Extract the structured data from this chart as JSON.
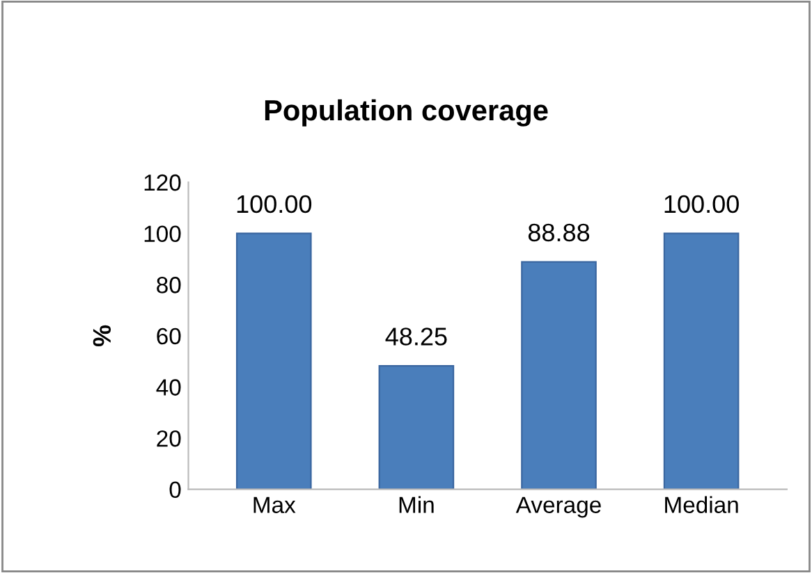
{
  "chart_data": {
    "type": "bar",
    "title": "Population coverage",
    "ylabel": "%",
    "categories": [
      "Max",
      "Min",
      "Average",
      "Median"
    ],
    "values": [
      100.0,
      48.25,
      88.88,
      100.0
    ],
    "value_labels": [
      "100.00",
      "48.25",
      "88.88",
      "100.00"
    ],
    "color": "#4a7ebb",
    "ylim": [
      0,
      120
    ],
    "yticks": [
      0,
      20,
      40,
      60,
      80,
      100,
      120
    ],
    "grid": false,
    "legend": false
  }
}
